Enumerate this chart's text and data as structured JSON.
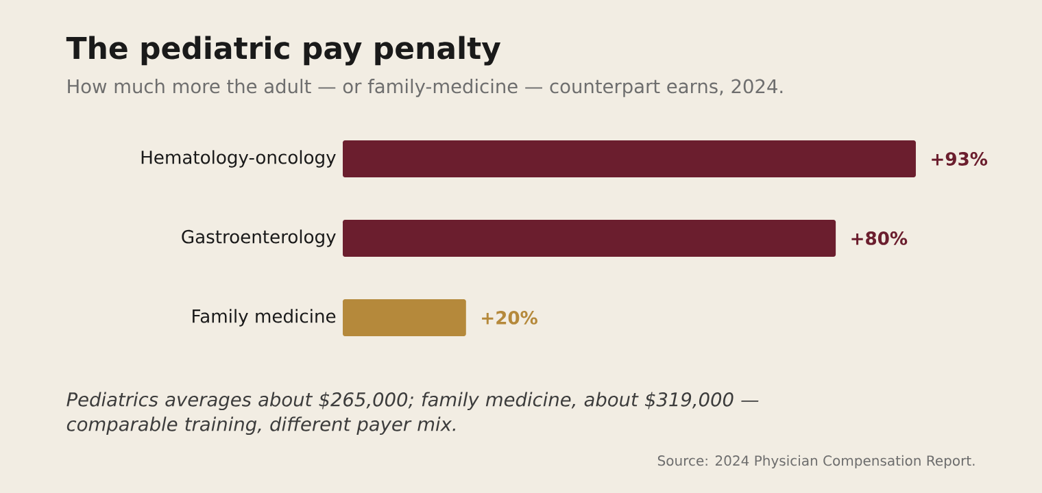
{
  "chart_data": {
    "type": "bar",
    "orientation": "horizontal",
    "title": "The pediatric pay penalty",
    "subtitle": "How much more the adult — or family-medicine — counterpart earns, 2024.",
    "categories": [
      "Hematology-oncology",
      "Gastroenterology",
      "Family medicine"
    ],
    "values": [
      93,
      80,
      20
    ],
    "colors": [
      "#6b1e2e",
      "#6b1e2e",
      "#b5893b"
    ],
    "value_labels": [
      "+93%",
      "+80%",
      "+20%"
    ],
    "annotations": [
      "Pediatrics averages about $265,000; family medicine, about $319,000 — comparable training, different payer mix.",
      "Source: 2024 Physician Compensation Report."
    ]
  }
}
